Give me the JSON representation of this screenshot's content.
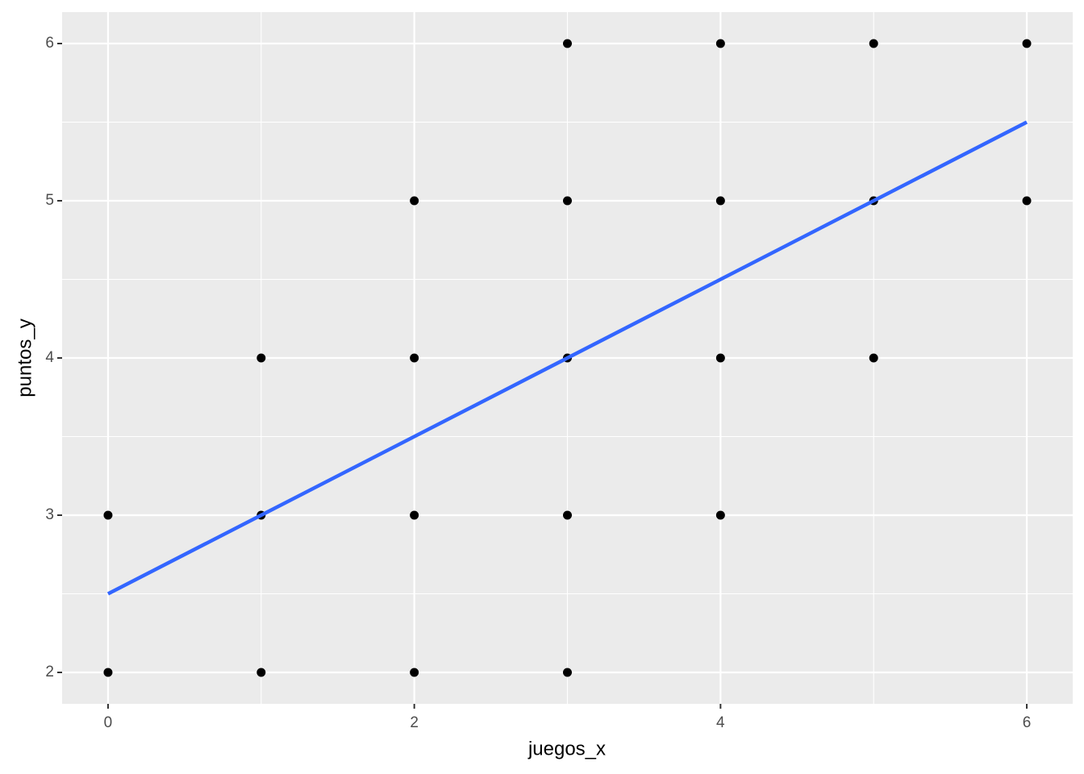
{
  "chart_data": {
    "type": "scatter",
    "x_label": "juegos_x",
    "y_label": "puntos_y",
    "x": [
      0,
      0,
      1,
      1,
      1,
      2,
      2,
      2,
      2,
      3,
      3,
      3,
      3,
      3,
      4,
      4,
      4,
      4,
      5,
      5,
      5,
      6,
      6
    ],
    "values": [
      3,
      2,
      4,
      3,
      2,
      5,
      4,
      3,
      2,
      6,
      5,
      4,
      3,
      2,
      6,
      5,
      4,
      3,
      6,
      5,
      4,
      6,
      5
    ],
    "color": "#000000",
    "fit_line": {
      "x": [
        0,
        6
      ],
      "values": [
        2.5,
        5.5
      ],
      "color": "#3366ff"
    },
    "xlim": [
      -0.3,
      6.3
    ],
    "xticks": [
      0,
      2,
      4,
      6
    ],
    "ylim": [
      1.8,
      6.2
    ],
    "yticks": [
      2,
      3,
      4,
      5,
      6
    ],
    "grid": true
  }
}
